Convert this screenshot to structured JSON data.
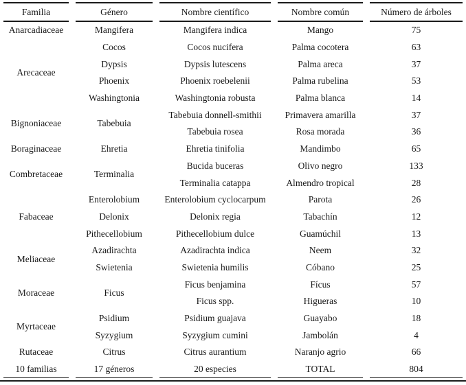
{
  "table": {
    "headers": [
      "Familia",
      "Género",
      "Nombre científico",
      "Nombre común",
      "Número de árboles"
    ],
    "groups": [
      {
        "familia": "Anarcadiaceae",
        "genera": [
          {
            "genero": "Mangifera",
            "species": [
              {
                "cientifico": "Mangifera indica",
                "comun": "Mango",
                "numero": "75"
              }
            ]
          }
        ]
      },
      {
        "familia": "Arecaceae",
        "genera": [
          {
            "genero": "Cocos",
            "species": [
              {
                "cientifico": "Cocos nucifera",
                "comun": "Palma cocotera",
                "numero": "63"
              }
            ]
          },
          {
            "genero": "Dypsis",
            "species": [
              {
                "cientifico": "Dypsis lutescens",
                "comun": "Palma areca",
                "numero": "37"
              }
            ]
          },
          {
            "genero": "Phoenix",
            "species": [
              {
                "cientifico": "Phoenix roebelenii",
                "comun": "Palma rubelina",
                "numero": "53"
              }
            ]
          },
          {
            "genero": "Washingtonia",
            "species": [
              {
                "cientifico": "Washingtonia robusta",
                "comun": "Palma blanca",
                "numero": "14"
              }
            ]
          }
        ]
      },
      {
        "familia": "Bignoniaceae",
        "genera": [
          {
            "genero": "Tabebuia",
            "species": [
              {
                "cientifico": "Tabebuia donnell-smithii",
                "comun": "Primavera amarilla",
                "numero": "37"
              },
              {
                "cientifico": "Tabebuia rosea",
                "comun": "Rosa morada",
                "numero": "36"
              }
            ]
          }
        ]
      },
      {
        "familia": "Boraginaceae",
        "genera": [
          {
            "genero": "Ehretia",
            "species": [
              {
                "cientifico": "Ehretia tinifolia",
                "comun": "Mandimbo",
                "numero": "65"
              }
            ]
          }
        ]
      },
      {
        "familia": "Combretaceae",
        "genera": [
          {
            "genero": "Terminalia",
            "species": [
              {
                "cientifico": "Bucida buceras",
                "comun": "Olivo negro",
                "numero": "133"
              },
              {
                "cientifico": "Terminalia catappa",
                "comun": "Almendro tropical",
                "numero": "28"
              }
            ]
          }
        ]
      },
      {
        "familia": "Fabaceae",
        "genera": [
          {
            "genero": "Enterolobium",
            "species": [
              {
                "cientifico": "Enterolobium cyclocarpum",
                "comun": "Parota",
                "numero": "26"
              }
            ]
          },
          {
            "genero": "Delonix",
            "species": [
              {
                "cientifico": "Delonix regia",
                "comun": "Tabachín",
                "numero": "12"
              }
            ]
          },
          {
            "genero": "Pithecellobium",
            "species": [
              {
                "cientifico": "Pithecellobium dulce",
                "comun": "Guamúchil",
                "numero": "13"
              }
            ]
          }
        ]
      },
      {
        "familia": "Meliaceae",
        "genera": [
          {
            "genero": "Azadirachta",
            "species": [
              {
                "cientifico": "Azadirachta indica",
                "comun": "Neem",
                "numero": "32"
              }
            ]
          },
          {
            "genero": "Swietenia",
            "species": [
              {
                "cientifico": "Swietenia humilis",
                "comun": "Cóbano",
                "numero": "25"
              }
            ]
          }
        ]
      },
      {
        "familia": "Moraceae",
        "genera": [
          {
            "genero": "Ficus",
            "species": [
              {
                "cientifico": "Ficus benjamina",
                "comun": "Fícus",
                "numero": "57"
              },
              {
                "cientifico": "Ficus spp.",
                "comun": "Higueras",
                "numero": "10"
              }
            ]
          }
        ]
      },
      {
        "familia": "Myrtaceae",
        "genera": [
          {
            "genero": "Psidium",
            "species": [
              {
                "cientifico": "Psidium guajava",
                "comun": "Guayabo",
                "numero": "18"
              }
            ]
          },
          {
            "genero": "Syzygium",
            "species": [
              {
                "cientifico": "Syzygium cumini",
                "comun": "Jambolán",
                "numero": "4"
              }
            ]
          }
        ]
      },
      {
        "familia": "Rutaceae",
        "genera": [
          {
            "genero": "Citrus",
            "species": [
              {
                "cientifico": "Citrus aurantium",
                "comun": "Naranjo agrio",
                "numero": "66"
              }
            ]
          }
        ]
      }
    ],
    "footer": [
      "10 familias",
      "17 géneros",
      "20 especies",
      "TOTAL",
      "804"
    ]
  }
}
